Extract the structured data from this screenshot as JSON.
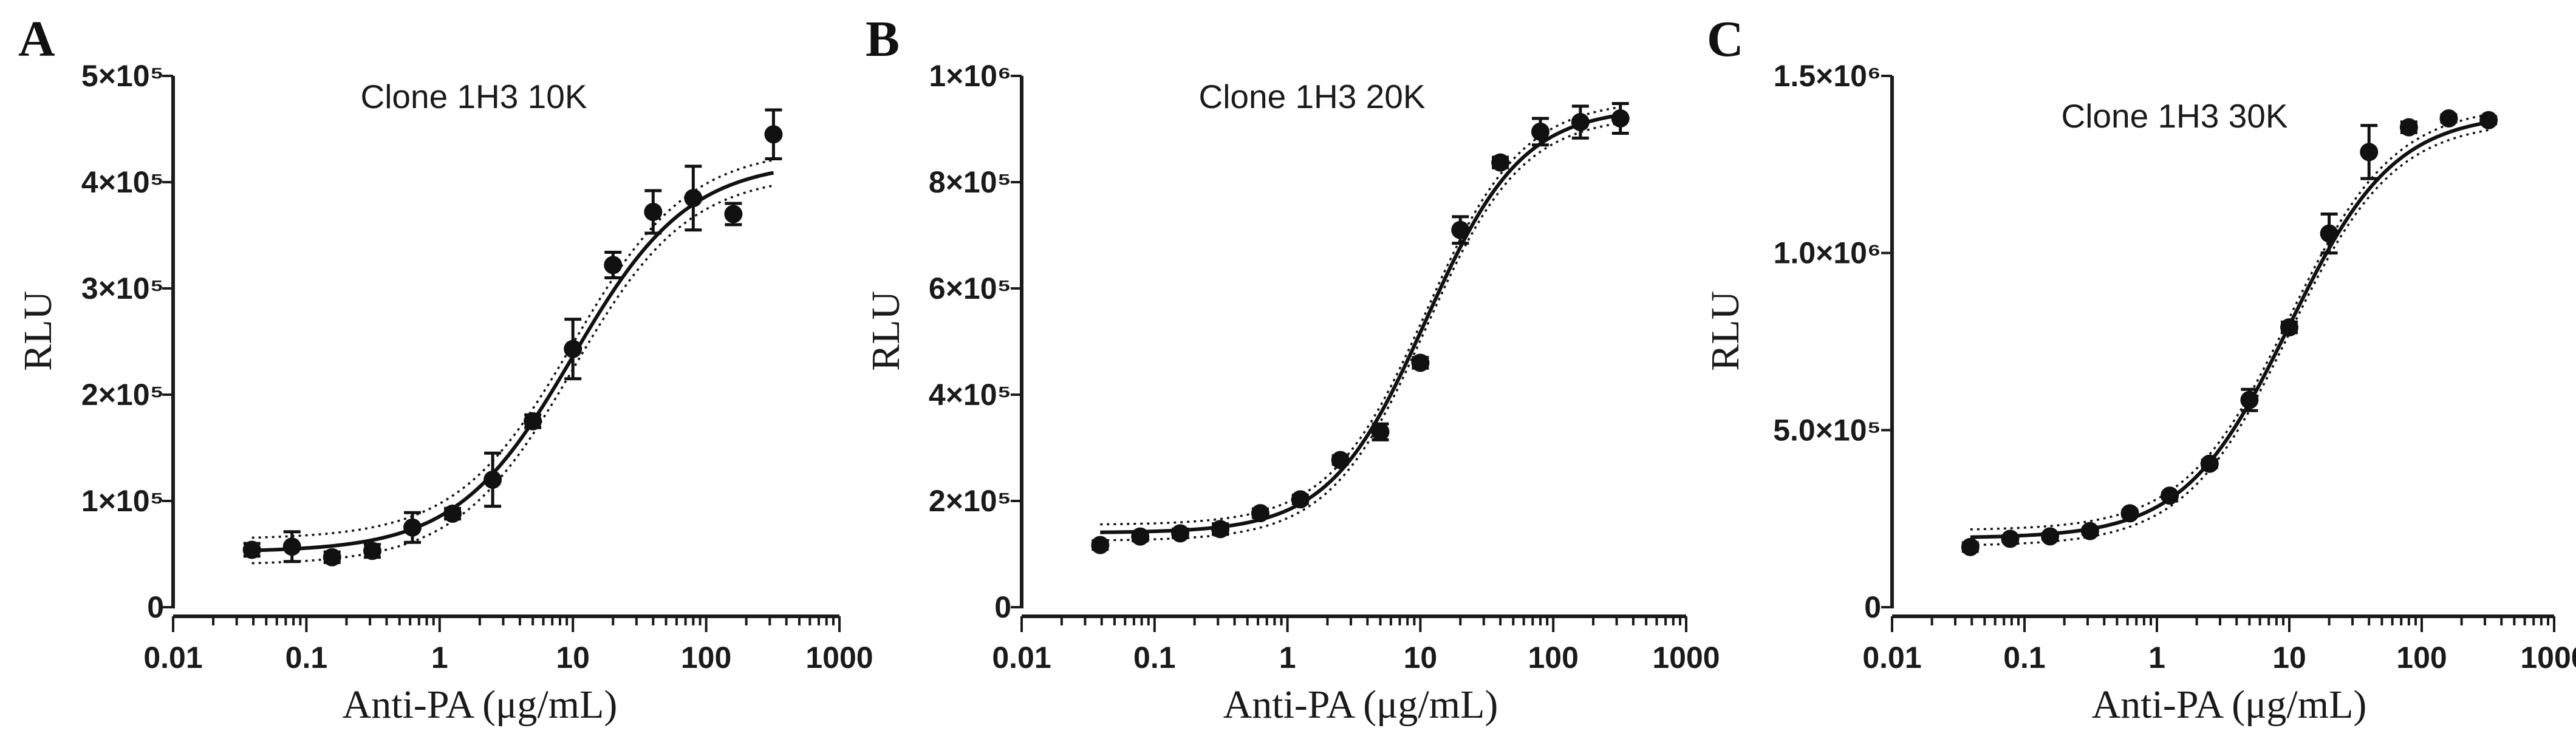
{
  "chart_data": [
    {
      "type": "scatter",
      "panel_label": "A",
      "title": "Clone 1H3 10K",
      "xlabel": "Anti-PA (μg/mL)",
      "ylabel": "RLU",
      "x_scale": "log",
      "xlim": [
        0.01,
        1000
      ],
      "ylim": [
        0,
        500000
      ],
      "x_tick_values": [
        0.01,
        0.1,
        1,
        10,
        100,
        1000
      ],
      "x_tick_labels": [
        "0.01",
        "0.1",
        "1",
        "10",
        "100",
        "1000"
      ],
      "y_tick_values": [
        0,
        100000,
        200000,
        300000,
        400000,
        500000
      ],
      "y_tick_labels": [
        "0",
        "1×10⁵",
        "2×10⁵",
        "3×10⁵",
        "4×10⁵",
        "5×10⁵"
      ],
      "points": [
        {
          "x": 0.039,
          "y": 54000,
          "err": 6000
        },
        {
          "x": 0.078,
          "y": 57000,
          "err": 14000
        },
        {
          "x": 0.156,
          "y": 47000,
          "err": 5000
        },
        {
          "x": 0.3125,
          "y": 53000,
          "err": 6000
        },
        {
          "x": 0.625,
          "y": 75000,
          "err": 14000
        },
        {
          "x": 1.25,
          "y": 88000,
          "err": 5000
        },
        {
          "x": 2.5,
          "y": 120000,
          "err": 25000
        },
        {
          "x": 5,
          "y": 175000,
          "err": 6000
        },
        {
          "x": 10,
          "y": 243000,
          "err": 28000
        },
        {
          "x": 20,
          "y": 322000,
          "err": 12000
        },
        {
          "x": 40,
          "y": 372000,
          "err": 20000
        },
        {
          "x": 80,
          "y": 385000,
          "err": 30000
        },
        {
          "x": 160,
          "y": 370000,
          "err": 10000
        },
        {
          "x": 320,
          "y": 445000,
          "err": 23000
        }
      ],
      "fit": {
        "bottom": 52000,
        "top": 420000,
        "ec50": 10,
        "hill": 1.0,
        "ci_delta": 12000,
        "x_range": [
          0.039,
          320
        ]
      }
    },
    {
      "type": "scatter",
      "panel_label": "B",
      "title": "Clone 1H3 20K",
      "xlabel": "Anti-PA (μg/mL)",
      "ylabel": "RLU",
      "x_scale": "log",
      "xlim": [
        0.01,
        1000
      ],
      "ylim": [
        0,
        1000000
      ],
      "x_tick_values": [
        0.01,
        0.1,
        1,
        10,
        100,
        1000
      ],
      "x_tick_labels": [
        "0.01",
        "0.1",
        "1",
        "10",
        "100",
        "1000"
      ],
      "y_tick_values": [
        0,
        200000,
        400000,
        600000,
        800000,
        1000000
      ],
      "y_tick_labels": [
        "0",
        "2×10⁵",
        "4×10⁵",
        "6×10⁵",
        "8×10⁵",
        "1×10⁶"
      ],
      "points": [
        {
          "x": 0.039,
          "y": 117000,
          "err": 8000
        },
        {
          "x": 0.078,
          "y": 133000,
          "err": 8000
        },
        {
          "x": 0.156,
          "y": 139000,
          "err": 8000
        },
        {
          "x": 0.3125,
          "y": 147000,
          "err": 10000
        },
        {
          "x": 0.625,
          "y": 177000,
          "err": 8000
        },
        {
          "x": 1.25,
          "y": 203000,
          "err": 8000
        },
        {
          "x": 2.5,
          "y": 277000,
          "err": 8000
        },
        {
          "x": 5,
          "y": 330000,
          "err": 15000
        },
        {
          "x": 10,
          "y": 460000,
          "err": 10000
        },
        {
          "x": 20,
          "y": 710000,
          "err": 25000
        },
        {
          "x": 40,
          "y": 837000,
          "err": 10000
        },
        {
          "x": 80,
          "y": 895000,
          "err": 25000
        },
        {
          "x": 160,
          "y": 913000,
          "err": 30000
        },
        {
          "x": 320,
          "y": 920000,
          "err": 28000
        }
      ],
      "fit": {
        "bottom": 140000,
        "top": 940000,
        "ec50": 11,
        "hill": 1.2,
        "ci_delta": 15000,
        "x_range": [
          0.039,
          320
        ]
      }
    },
    {
      "type": "scatter",
      "panel_label": "C",
      "title": "Clone 1H3 30K",
      "xlabel": "Anti-PA (μg/mL)",
      "ylabel": "RLU",
      "x_scale": "log",
      "xlim": [
        0.01,
        1000
      ],
      "ylim": [
        0,
        1500000
      ],
      "x_tick_values": [
        0.01,
        0.1,
        1,
        10,
        100,
        1000
      ],
      "x_tick_labels": [
        "0.01",
        "0.1",
        "1",
        "10",
        "100",
        "1000"
      ],
      "y_tick_values": [
        0,
        500000,
        1000000,
        1500000
      ],
      "y_tick_labels": [
        "0",
        "5.0×10⁵",
        "1.0×10⁶",
        "1.5×10⁶"
      ],
      "points": [
        {
          "x": 0.039,
          "y": 170000,
          "err": 12000
        },
        {
          "x": 0.078,
          "y": 193000,
          "err": 8000
        },
        {
          "x": 0.156,
          "y": 200000,
          "err": 8000
        },
        {
          "x": 0.3125,
          "y": 215000,
          "err": 8000
        },
        {
          "x": 0.625,
          "y": 265000,
          "err": 8000
        },
        {
          "x": 1.25,
          "y": 315000,
          "err": 8000
        },
        {
          "x": 2.5,
          "y": 405000,
          "err": 10000
        },
        {
          "x": 5,
          "y": 585000,
          "err": 30000
        },
        {
          "x": 10,
          "y": 790000,
          "err": 15000
        },
        {
          "x": 20,
          "y": 1055000,
          "err": 55000
        },
        {
          "x": 40,
          "y": 1285000,
          "err": 75000
        },
        {
          "x": 80,
          "y": 1355000,
          "err": 15000
        },
        {
          "x": 160,
          "y": 1380000,
          "err": 10000
        },
        {
          "x": 320,
          "y": 1375000,
          "err": 10000
        }
      ],
      "fit": {
        "bottom": 195000,
        "top": 1395000,
        "ec50": 10,
        "hill": 1.1,
        "ci_delta": 22000,
        "x_range": [
          0.039,
          320
        ]
      }
    }
  ]
}
